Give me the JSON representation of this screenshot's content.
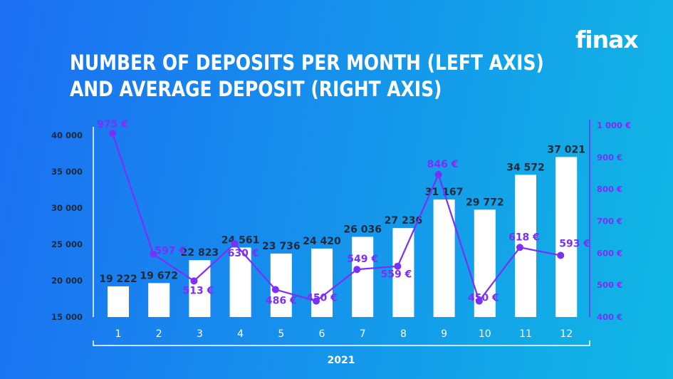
{
  "brand": {
    "logo_text": "finax"
  },
  "chart_data": {
    "type": "bar+line",
    "title_lines": [
      "NUMBER OF DEPOSITS PER MONTH (LEFT AXIS)",
      "AND AVERAGE DEPOSIT (RIGHT AXIS)"
    ],
    "xlabel": "2021",
    "categories": [
      "1",
      "2",
      "3",
      "4",
      "5",
      "6",
      "7",
      "8",
      "9",
      "10",
      "11",
      "12"
    ],
    "bars": {
      "axis": "left",
      "values": [
        19222,
        19672,
        22823,
        24561,
        23736,
        24420,
        26036,
        27236,
        31167,
        29772,
        34572,
        37021
      ],
      "labels": [
        "19 222",
        "19 672",
        "22 823",
        "24 561",
        "23 736",
        "24 420",
        "26 036",
        "27 236",
        "31 167",
        "29 772",
        "34 572",
        "37 021"
      ],
      "color": "#ffffff"
    },
    "line": {
      "axis": "right",
      "values": [
        975,
        597,
        513,
        630,
        486,
        450,
        549,
        559,
        846,
        450,
        618,
        593
      ],
      "labels": [
        "975 €",
        "597 €",
        "513 €",
        "630 €",
        "486 €",
        "450 €",
        "549 €",
        "559 €",
        "846 €",
        "450 €",
        "618 €",
        "593 €"
      ],
      "color": "#7b2ff7"
    },
    "left_axis": {
      "ylim": [
        15000,
        40000
      ],
      "ticks": [
        15000,
        20000,
        25000,
        30000,
        35000,
        40000
      ],
      "tick_labels": [
        "15 000",
        "20 000",
        "25 000",
        "30 000",
        "35 000",
        "40 000"
      ]
    },
    "right_axis": {
      "ylim": [
        400,
        1000
      ],
      "ticks": [
        400,
        500,
        600,
        700,
        800,
        900,
        1000
      ],
      "tick_labels": [
        "400 €",
        "500 €",
        "600 €",
        "700 €",
        "800 €",
        "900 €",
        "1 000 €"
      ],
      "color": "#7b2ff7"
    },
    "grid": false
  }
}
